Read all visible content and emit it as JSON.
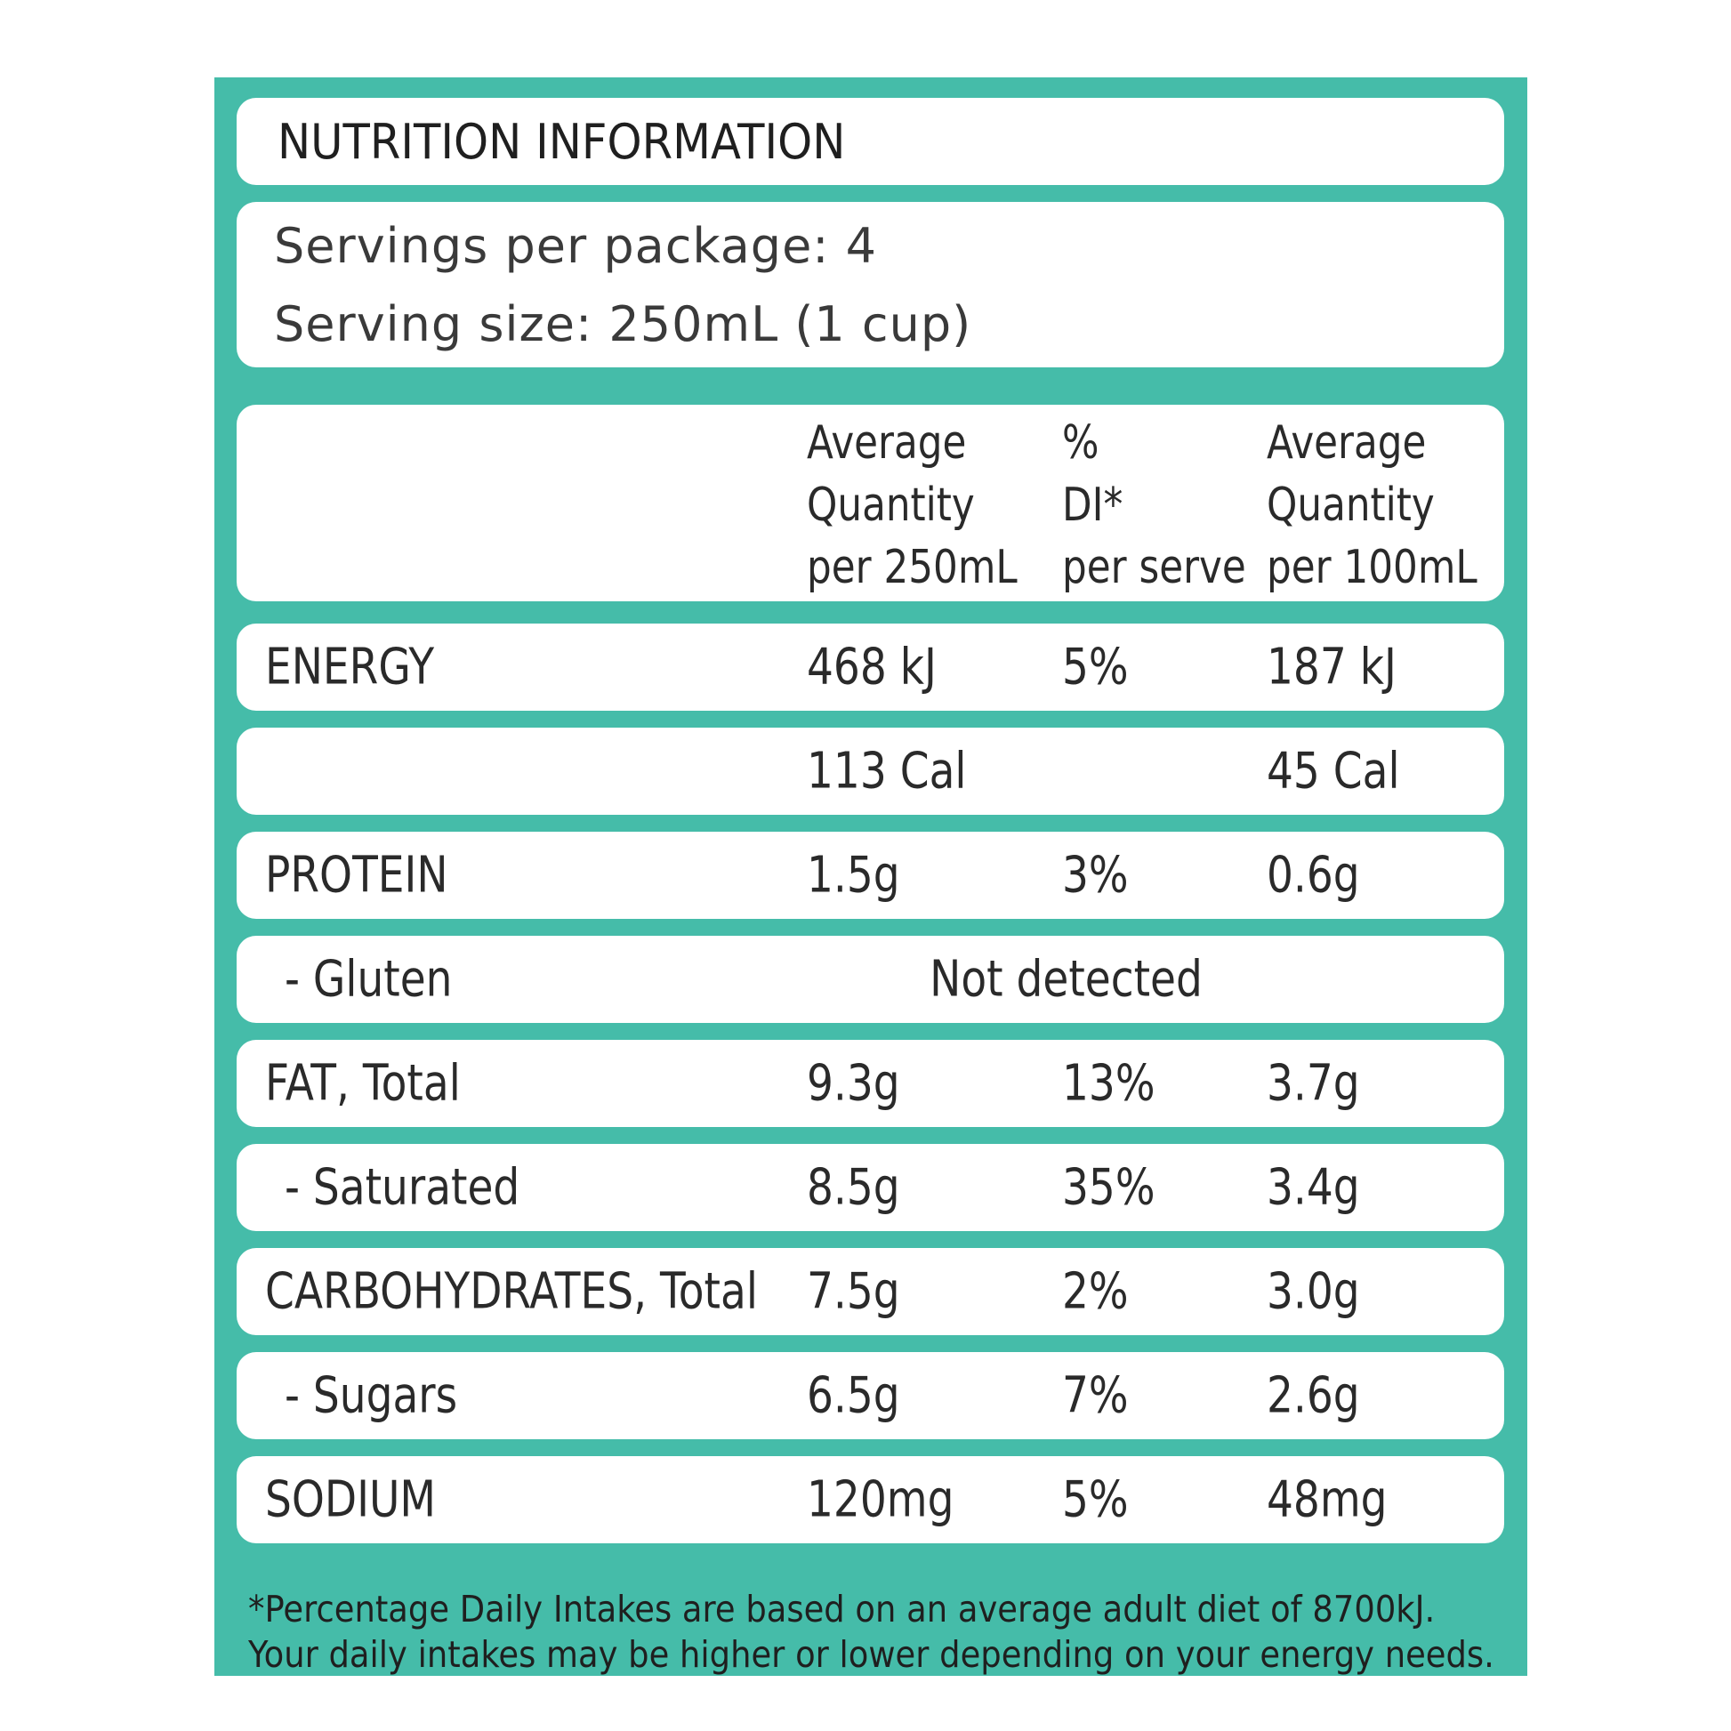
{
  "title": "NUTRITION INFORMATION",
  "servings_per_package": "Servings per package: 4",
  "serving_size": "Serving size: 250mL (1 cup)",
  "columns": {
    "per_serve_qty": [
      "Average",
      "Quantity",
      "per 250mL"
    ],
    "percent_di": [
      "%",
      "DI*",
      "per serve"
    ],
    "per_100ml_qty": [
      "Average",
      "Quantity",
      "per 100mL"
    ]
  },
  "rows": [
    {
      "name": "ENERGY",
      "per_serve": "468 kJ",
      "di": "5%",
      "per_100ml": "187 kJ"
    },
    {
      "name": "",
      "per_serve": "113 Cal",
      "di": "",
      "per_100ml": "45 Cal"
    },
    {
      "name": "PROTEIN",
      "per_serve": "1.5g",
      "di": "3%",
      "per_100ml": "0.6g"
    },
    {
      "name": "- Gluten",
      "spanning_value": "Not detected"
    },
    {
      "name": "FAT, Total",
      "per_serve": "9.3g",
      "di": "13%",
      "per_100ml": "3.7g"
    },
    {
      "name": "- Saturated",
      "per_serve": "8.5g",
      "di": "35%",
      "per_100ml": "3.4g"
    },
    {
      "name": "CARBOHYDRATES, Total",
      "per_serve": "7.5g",
      "di": "2%",
      "per_100ml": "3.0g"
    },
    {
      "name": "- Sugars",
      "per_serve": "6.5g",
      "di": "7%",
      "per_100ml": "2.6g"
    },
    {
      "name": "SODIUM",
      "per_serve": "120mg",
      "di": "5%",
      "per_100ml": "48mg"
    }
  ],
  "footnote": [
    "*Percentage Daily Intakes are based on an average adult diet of 8700kJ.",
    "Your daily intakes may be higher or lower depending on your energy needs."
  ],
  "colors": {
    "panel": "#45bca9",
    "box": "#ffffff",
    "text": "#2a2a2a"
  }
}
